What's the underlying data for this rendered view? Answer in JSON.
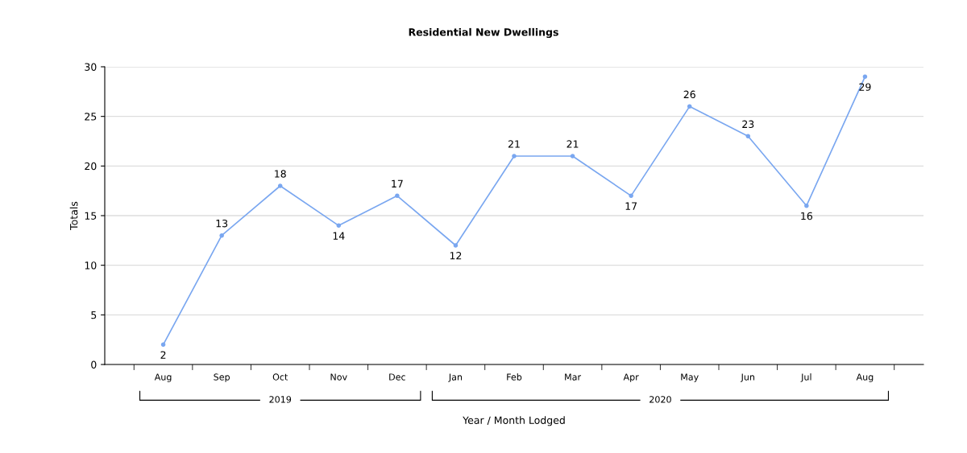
{
  "chart_data": {
    "type": "line",
    "title": "Residential New Dwellings",
    "xlabel": "Year / Month Lodged",
    "ylabel": "Totals",
    "x": [
      "2019-08",
      "2019-09",
      "2019-10",
      "2019-11",
      "2019-12",
      "2020-01",
      "2020-02",
      "2020-03",
      "2020-04",
      "2020-05",
      "2020-06",
      "2020-07",
      "2020-08"
    ],
    "series": [
      {
        "color": "#7aa7f0",
        "values": [
          2,
          13,
          18,
          14,
          17,
          12,
          21,
          21,
          17,
          26,
          23,
          16,
          29
        ]
      }
    ],
    "xlim": [
      "2019-07",
      "2020-09"
    ],
    "ylim": [
      0,
      30
    ],
    "yticks": [
      0,
      5,
      10,
      15,
      20,
      25,
      30
    ],
    "xticks": [
      {
        "value": "2019-08",
        "label": "Aug"
      },
      {
        "value": "2019-09",
        "label": "Sep"
      },
      {
        "value": "2019-10",
        "label": "Oct"
      },
      {
        "value": "2019-11",
        "label": "Nov"
      },
      {
        "value": "2019-12",
        "label": "Dec"
      },
      {
        "value": "2020-01",
        "label": "Jan"
      },
      {
        "value": "2020-02",
        "label": "Feb"
      },
      {
        "value": "2020-03",
        "label": "Mar"
      },
      {
        "value": "2020-04",
        "label": "Apr"
      },
      {
        "value": "2020-05",
        "label": "May"
      },
      {
        "value": "2020-06",
        "label": "Jun"
      },
      {
        "value": "2020-07",
        "label": "Jul"
      },
      {
        "value": "2020-08",
        "label": "Aug"
      }
    ],
    "annotations": [
      "2019",
      "2020"
    ],
    "grid": "y",
    "marker": "circle",
    "line_style": "solid",
    "data_labels": true
  }
}
